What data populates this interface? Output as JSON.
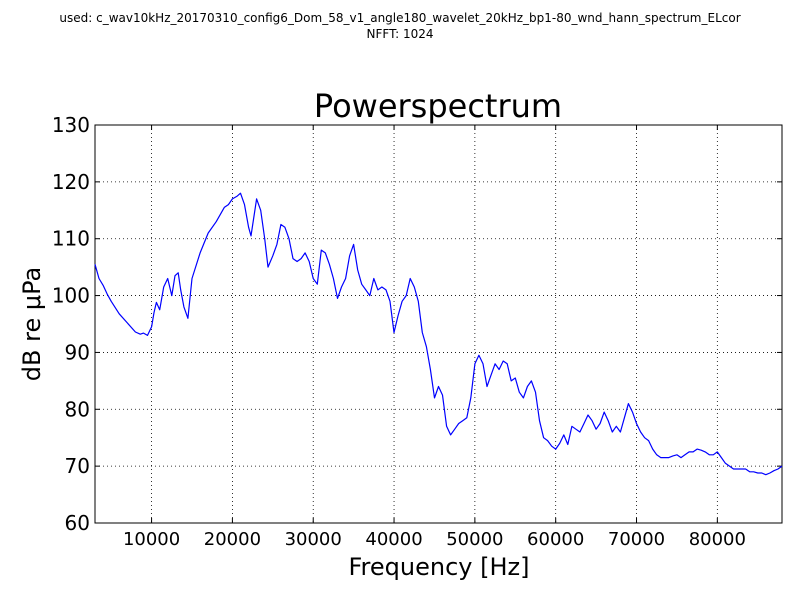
{
  "header": {
    "line1": "used: c_wav10kHz_20170310_config6_Dom_58_v1_angle180_wavelet_20kHz_bp1-80_wnd_hann_spectrum_ELcor",
    "line2": "NFFT: 1024"
  },
  "chart_data": {
    "type": "line",
    "title": "Powerspectrum",
    "xlabel": "Frequency [Hz]",
    "ylabel": "dB re μPa",
    "xlim": [
      3000,
      88000
    ],
    "ylim": [
      60,
      130
    ],
    "grid": true,
    "line_color": "#0000ff",
    "x_ticks": [
      10000,
      20000,
      30000,
      40000,
      50000,
      60000,
      70000,
      80000
    ],
    "y_ticks": [
      60,
      70,
      80,
      90,
      100,
      110,
      120,
      130
    ],
    "series": [
      {
        "x": [
          3000,
          3500,
          4000,
          4500,
          5000,
          6000,
          7000,
          8000,
          8600,
          9000,
          9500,
          10000,
          10300,
          10600,
          11000,
          11500,
          12000,
          12500,
          12900,
          13300,
          13600,
          14000,
          14500,
          15000,
          16000,
          17000,
          18000,
          19000,
          19500,
          20000,
          20600,
          21000,
          21500,
          22000,
          22300,
          23000,
          23500,
          24000,
          24400,
          25000,
          25500,
          26000,
          26500,
          27000,
          27500,
          28000,
          28500,
          29000,
          29500,
          30000,
          30500,
          31000,
          31500,
          32000,
          32500,
          33000,
          33500,
          34000,
          34500,
          35000,
          35500,
          36000,
          36500,
          37000,
          37500,
          38000,
          38500,
          39000,
          39500,
          40000,
          40500,
          41000,
          41500,
          42000,
          42500,
          43000,
          43500,
          44000,
          44500,
          45000,
          45500,
          46000,
          46500,
          47000,
          47500,
          48000,
          48500,
          49000,
          49500,
          50000,
          50500,
          51000,
          51500,
          52000,
          52500,
          53000,
          53500,
          54000,
          54500,
          55000,
          55500,
          56000,
          56500,
          57000,
          57500,
          58000,
          58500,
          59000,
          59500,
          60000,
          60500,
          61000,
          61500,
          62000,
          62500,
          63000,
          63500,
          64000,
          64500,
          65000,
          65500,
          66000,
          66500,
          67000,
          67500,
          68000,
          68500,
          69000,
          69500,
          70000,
          70500,
          71000,
          71500,
          72000,
          72500,
          73000,
          73500,
          74000,
          74500,
          75000,
          75500,
          76000,
          76500,
          77000,
          77500,
          78000,
          78500,
          79000,
          79500,
          80000,
          80500,
          81000,
          81500,
          82000,
          82500,
          83000,
          83500,
          84000,
          84500,
          85000,
          85500,
          86000,
          86500,
          87000,
          87500,
          88000
        ],
        "y": [
          105.5,
          103.0,
          101.8,
          100.3,
          99.0,
          96.8,
          95.2,
          93.6,
          93.2,
          93.4,
          93.0,
          94.5,
          97.0,
          98.8,
          97.5,
          101.5,
          103.0,
          100.0,
          103.5,
          104.0,
          101.0,
          98.0,
          96.0,
          103.0,
          107.5,
          111.0,
          113.0,
          115.5,
          116.0,
          117.0,
          117.5,
          118.0,
          116.0,
          112.0,
          110.5,
          117.0,
          115.0,
          110.0,
          105.0,
          107.0,
          109.0,
          112.5,
          112.0,
          110.0,
          106.5,
          106.0,
          106.5,
          107.5,
          106.0,
          103.0,
          102.0,
          108.0,
          107.5,
          105.5,
          103.0,
          99.5,
          101.5,
          103.0,
          107.0,
          109.0,
          104.5,
          102.0,
          101.0,
          100.0,
          103.0,
          101.0,
          101.5,
          101.0,
          99.0,
          93.5,
          96.5,
          99.0,
          100.0,
          103.0,
          101.5,
          99.0,
          93.5,
          91.0,
          87.0,
          82.0,
          84.0,
          82.5,
          77.0,
          75.5,
          76.5,
          77.5,
          78.0,
          78.5,
          82.0,
          88.0,
          89.5,
          88.0,
          84.0,
          86.0,
          88.0,
          87.0,
          88.5,
          88.0,
          85.0,
          85.5,
          83.0,
          82.0,
          84.0,
          85.0,
          83.0,
          78.0,
          75.0,
          74.5,
          73.5,
          73.0,
          74.0,
          75.5,
          73.8,
          77.0,
          76.5,
          76.0,
          77.5,
          79.0,
          78.0,
          76.5,
          77.5,
          79.5,
          78.0,
          76.0,
          77.0,
          76.0,
          78.5,
          81.0,
          79.5,
          77.5,
          76.0,
          75.0,
          74.5,
          73.0,
          72.0,
          71.5,
          71.5,
          71.5,
          71.8,
          72.0,
          71.5,
          72.0,
          72.5,
          72.5,
          73.0,
          72.8,
          72.5,
          72.0,
          72.0,
          72.5,
          71.5,
          70.5,
          70.0,
          69.5,
          69.5,
          69.5,
          69.5,
          69.0,
          69.0,
          68.8,
          68.8,
          68.5,
          68.8,
          69.2,
          69.5,
          70.0
        ]
      }
    ]
  }
}
